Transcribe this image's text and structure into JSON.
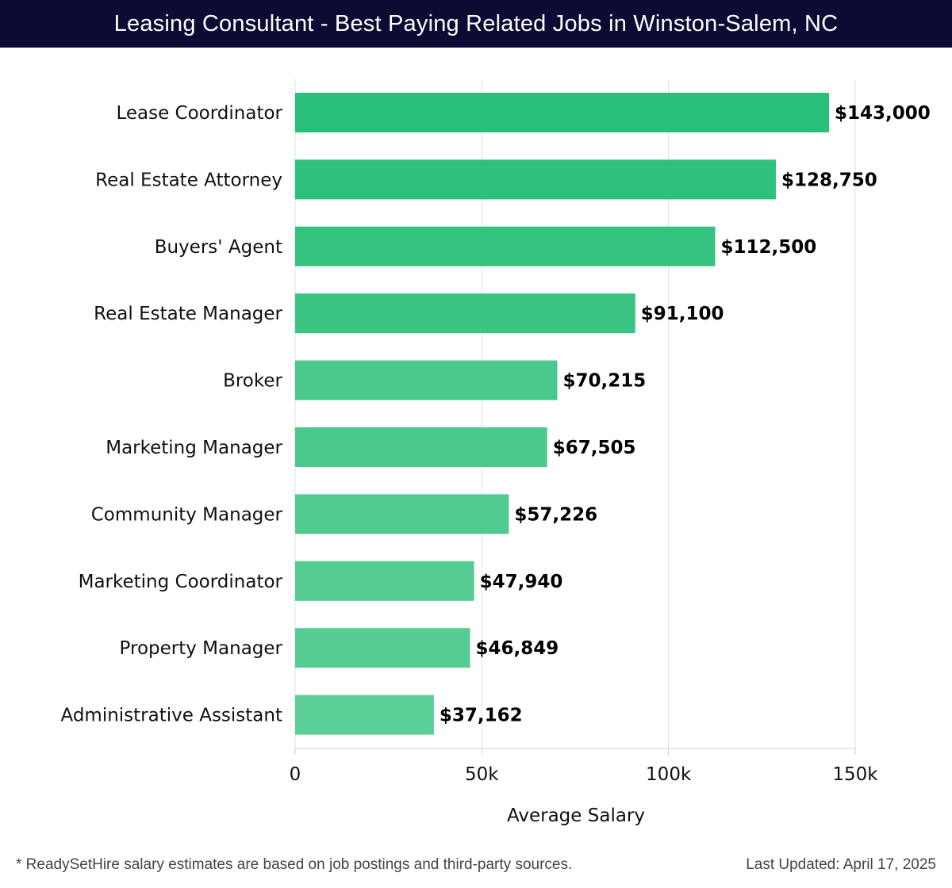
{
  "chart_data": {
    "type": "bar",
    "orientation": "horizontal",
    "title": "Leasing Consultant - Best Paying Related Jobs in Winston-Salem, NC",
    "xlabel": "Average Salary",
    "ylabel": "",
    "xlim": [
      0,
      150000
    ],
    "xticks": [
      {
        "value": 0,
        "label": "0"
      },
      {
        "value": 50000,
        "label": "50k"
      },
      {
        "value": 100000,
        "label": "100k"
      },
      {
        "value": 150000,
        "label": "150k"
      }
    ],
    "grid": true,
    "categories": [
      "Lease Coordinator",
      "Real Estate Attorney",
      "Buyers' Agent",
      "Real Estate Manager",
      "Broker",
      "Marketing Manager",
      "Community Manager",
      "Marketing Coordinator",
      "Property Manager",
      "Administrative Assistant"
    ],
    "values": [
      143000,
      128750,
      112500,
      91100,
      70215,
      67505,
      57226,
      47940,
      46849,
      37162
    ],
    "value_labels": [
      "$143,000",
      "$128,750",
      "$112,500",
      "$91,100",
      "$70,215",
      "$67,505",
      "$57,226",
      "$47,940",
      "$46,849",
      "$37,162"
    ],
    "colors": [
      "#2abf78",
      "#2fc17b",
      "#34c37f",
      "#3ac583",
      "#48c88a",
      "#4bc98c",
      "#50cb8f",
      "#54cc92",
      "#55cd93",
      "#5bcf97"
    ]
  },
  "footer": {
    "note": "* ReadySetHire salary estimates are based on job postings and third-party sources.",
    "updated": "Last Updated: April 17, 2025"
  }
}
